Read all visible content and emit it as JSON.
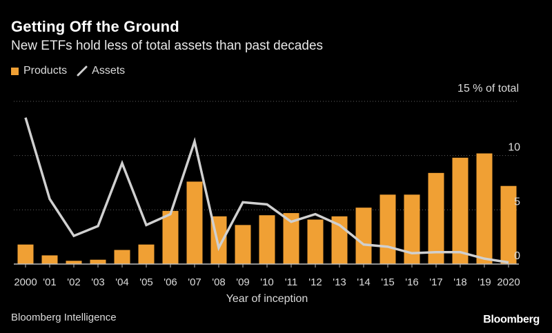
{
  "colors": {
    "background": "#000000",
    "bar": "#f0a034",
    "line": "#d0d0d0",
    "grid": "#666666",
    "text": "#dcdcdc"
  },
  "chart_data": {
    "type": "bar",
    "title": "Getting Off the Ground",
    "subtitle": "New ETFs hold less of total assets than past decades",
    "legend": [
      {
        "name": "Products",
        "kind": "bar"
      },
      {
        "name": "Assets",
        "kind": "line"
      }
    ],
    "categories": [
      "2000",
      "'01",
      "'02",
      "'03",
      "'04",
      "'05",
      "'06",
      "'07",
      "'08",
      "'09",
      "'10",
      "'11",
      "'12",
      "'13",
      "'14",
      "'15",
      "'16",
      "'17",
      "'18",
      "'19",
      "2020"
    ],
    "series": [
      {
        "name": "Products",
        "type": "bar",
        "values": [
          1.8,
          0.8,
          0.3,
          0.4,
          1.3,
          1.8,
          4.9,
          7.6,
          4.4,
          3.6,
          4.5,
          4.7,
          4.1,
          4.4,
          5.2,
          6.4,
          6.4,
          8.4,
          9.8,
          10.2,
          7.2
        ]
      },
      {
        "name": "Assets",
        "type": "line",
        "values": [
          13.5,
          6.0,
          2.6,
          3.5,
          9.3,
          3.6,
          4.6,
          11.3,
          1.5,
          5.7,
          5.5,
          3.9,
          4.6,
          3.6,
          1.8,
          1.6,
          1.0,
          1.1,
          1.1,
          0.5,
          0.15
        ]
      }
    ],
    "yaxis": {
      "unit_label": "15 % of total",
      "ticks": [
        "0",
        "5",
        "10"
      ],
      "tick_values": [
        0,
        5,
        10,
        15
      ],
      "ylim": [
        0,
        15
      ]
    },
    "xlabel": "Year of inception",
    "ylabel": "% of total"
  },
  "footer": {
    "source": "Bloomberg Intelligence",
    "brand": "Bloomberg"
  }
}
